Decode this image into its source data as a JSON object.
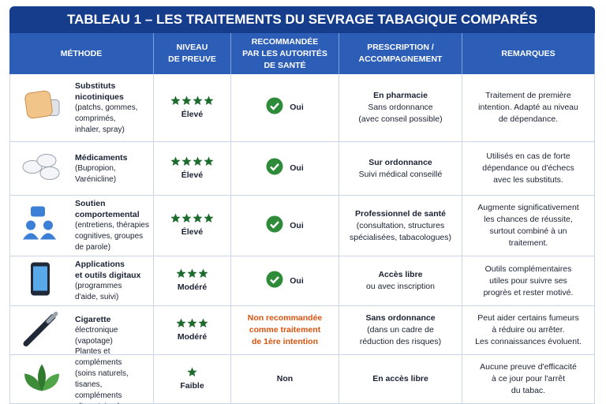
{
  "title": "TABLEAU 1 – LES TRAITEMENTS DU SEVRAGE TABAGIQUE COMPARÉS",
  "headers": [
    [
      "MÉTHODE"
    ],
    [
      "NIVEAU",
      "DE PREUVE"
    ],
    [
      "RECOMMANDÉE",
      "PAR LES AUTORITÉS",
      "DE SANTÉ"
    ],
    [
      "PRESCRIPTION /",
      "ACCOMPAGNEMENT"
    ],
    [
      "REMARQUES"
    ]
  ],
  "rows": [
    {
      "method": [
        "Substituts",
        "nicotiniques",
        "(patchs, gommes,",
        "comprimés,",
        "inhaler, spray)"
      ],
      "stars": 4,
      "level": "Élevé",
      "recommended": [
        "Oui"
      ],
      "check": true,
      "prescription": [
        "En pharmacie",
        "Sans ordonnance",
        "(avec conseil possible)"
      ],
      "remarks": [
        "Traitement de première",
        "intention. Adapté au niveau",
        "de dépendance."
      ]
    },
    {
      "method": [
        "Médicaments",
        "(Bupropion,",
        "Varénicline)"
      ],
      "stars": 4,
      "level": "Élevé",
      "recommended": [
        "Oui"
      ],
      "check": true,
      "prescription": [
        "Sur ordonnance",
        "Suivi médical conseillé"
      ],
      "remarks": [
        "Utilisés en cas de forte",
        "dépendance ou d'échecs",
        "avec les substituts."
      ]
    },
    {
      "method": [
        "Soutien",
        "comportemental",
        "(entretiens, thérapies",
        "cognitives, groupes",
        "de parole)"
      ],
      "stars": 4,
      "level": "Élevé",
      "recommended": [
        "Oui"
      ],
      "check": true,
      "prescription": [
        "Professionnel de santé",
        "(consultation, structures",
        "spécialisées, tabacologues)"
      ],
      "remarks": [
        "Augmente significativement",
        "les chances de réussite,",
        "surtout combiné à un",
        "traitement."
      ]
    },
    {
      "method": [
        "Applications",
        "et outils digitaux",
        "(programmes",
        "d'aide, suivi)"
      ],
      "stars": 3,
      "level": "Modéré",
      "recommended": [
        "Oui"
      ],
      "check": true,
      "prescription": [
        "Accès libre",
        "ou avec inscription"
      ],
      "remarks": [
        "Outils complémentaires",
        "utiles pour suivre ses",
        "progrès et rester motivé."
      ]
    },
    {
      "method": [
        "Cigarette",
        "électronique",
        "(vapotage)"
      ],
      "stars": 3,
      "level": "Modéré",
      "recommended": [
        "Non recommandée",
        "comme traitement",
        "de 1ère intention"
      ],
      "check": false,
      "color": "#d9530f",
      "prescription": [
        "Sans ordonnance",
        "(dans un cadre de",
        "réduction des risques)"
      ],
      "remarks": [
        "Peut aider certains fumeurs",
        "à réduire ou arrêter.",
        "Les connaissances évoluent."
      ]
    },
    {
      "method": [
        "Plantes et compléments",
        "(soins naturels, tisanes,",
        "compléments",
        "alimentaires)"
      ],
      "stars": 1,
      "level": "Faible",
      "recommended": [
        "Non"
      ],
      "check": false,
      "prescription": [
        "En accès libre"
      ],
      "remarks": [
        "Aucune preuve d'efficacité",
        "à ce jour pour l'arrêt",
        "du tabac."
      ]
    }
  ]
}
